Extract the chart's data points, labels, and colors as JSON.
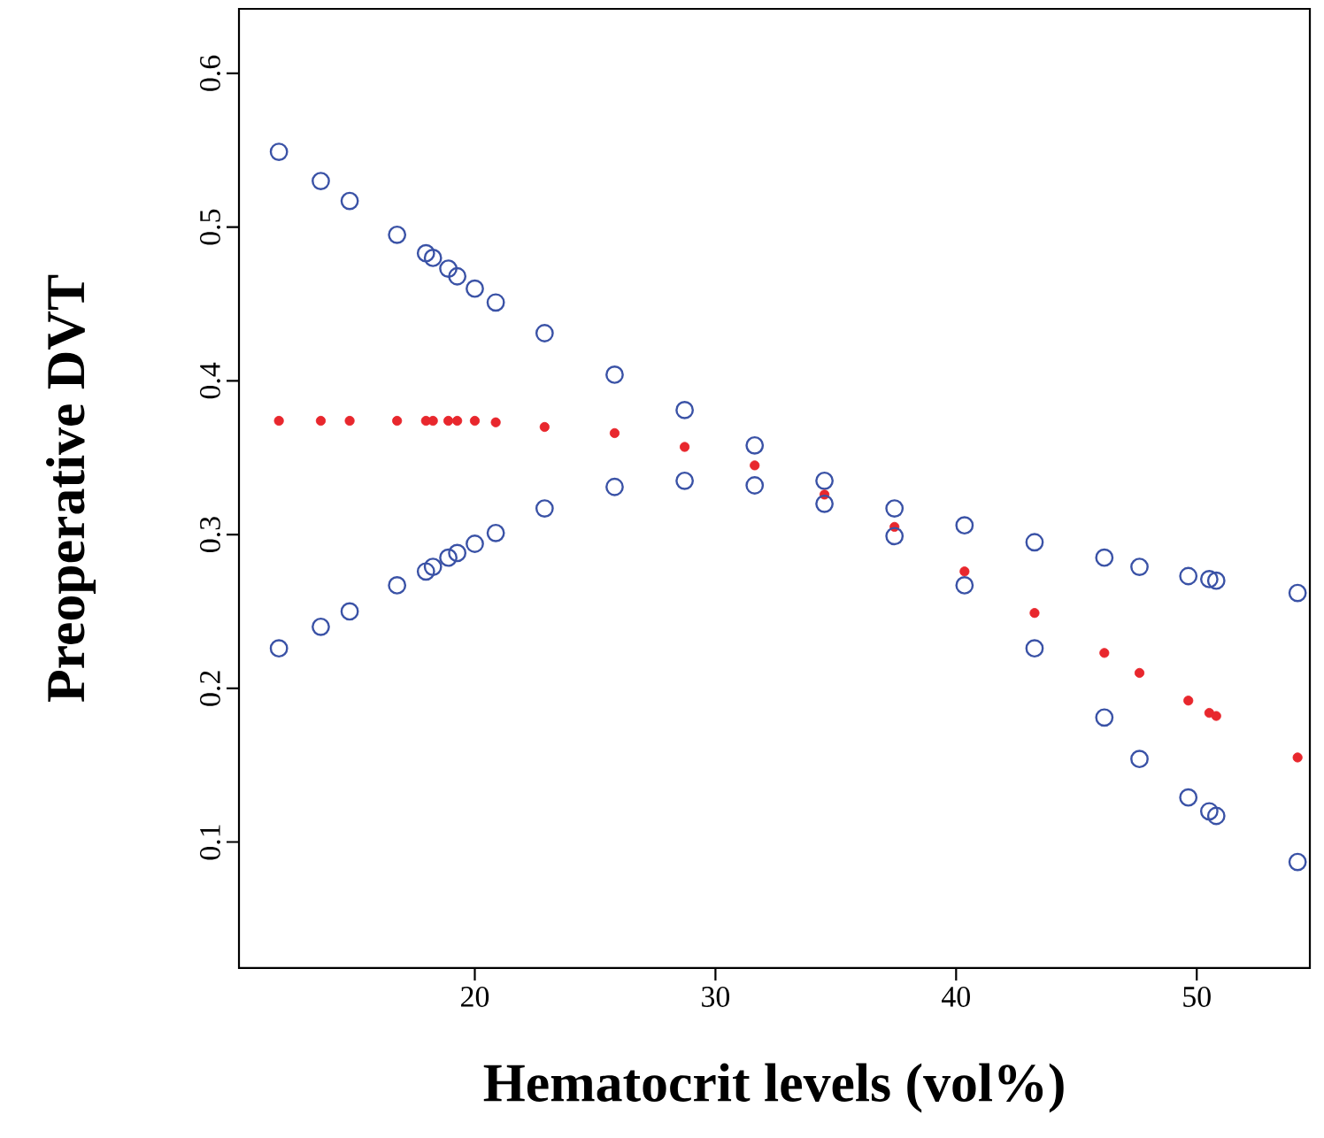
{
  "chart_data": {
    "type": "scatter",
    "xlabel": "Hematocrit levels (vol%)",
    "ylabel": "Preoperative DVT",
    "xlim": [
      10.2,
      54.7
    ],
    "ylim": [
      0.018,
      0.642
    ],
    "xticks": [
      20,
      30,
      40,
      50
    ],
    "yticks": [
      0.1,
      0.2,
      0.3,
      0.4,
      0.5,
      0.6
    ],
    "grid": false,
    "marker": "circle",
    "series": [
      {
        "color": "#3a52a6",
        "x": [
          11.86,
          13.6,
          14.8,
          16.77,
          17.97,
          18.26,
          18.9,
          19.27,
          20,
          20.87,
          22.9,
          25.81,
          28.72,
          31.63,
          34.53,
          37.44,
          40.35,
          43.26,
          46.16,
          47.62,
          49.65,
          50.52,
          50.81,
          54.19
        ],
        "values": [
          0.549,
          0.53,
          0.517,
          0.495,
          0.483,
          0.48,
          0.473,
          0.468,
          0.46,
          0.451,
          0.431,
          0.404,
          0.381,
          0.358,
          0.335,
          0.317,
          0.306,
          0.295,
          0.285,
          0.279,
          0.273,
          0.271,
          0.27,
          0.262
        ]
      },
      {
        "color": "#e8272d",
        "x": [
          11.86,
          13.6,
          14.8,
          16.77,
          17.97,
          18.26,
          18.9,
          19.27,
          20,
          20.87,
          22.9,
          25.81,
          28.72,
          31.63,
          34.53,
          37.44,
          40.35,
          43.26,
          46.16,
          47.62,
          49.65,
          50.52,
          50.81,
          54.19
        ],
        "values": [
          0.374,
          0.374,
          0.374,
          0.374,
          0.374,
          0.374,
          0.374,
          0.374,
          0.374,
          0.373,
          0.37,
          0.366,
          0.357,
          0.345,
          0.326,
          0.305,
          0.276,
          0.249,
          0.223,
          0.21,
          0.192,
          0.184,
          0.182,
          0.155
        ]
      },
      {
        "color": "#3a52a6",
        "x": [
          11.86,
          13.6,
          14.8,
          16.77,
          17.97,
          18.26,
          18.9,
          19.27,
          20,
          20.87,
          22.9,
          25.81,
          28.72,
          31.63,
          34.53,
          37.44,
          40.35,
          43.26,
          46.16,
          47.62,
          49.65,
          50.52,
          50.81,
          54.19
        ],
        "values": [
          0.226,
          0.24,
          0.25,
          0.267,
          0.276,
          0.279,
          0.285,
          0.288,
          0.294,
          0.301,
          0.317,
          0.331,
          0.335,
          0.332,
          0.32,
          0.299,
          0.267,
          0.226,
          0.181,
          0.154,
          0.129,
          0.12,
          0.117,
          0.087
        ]
      }
    ]
  }
}
